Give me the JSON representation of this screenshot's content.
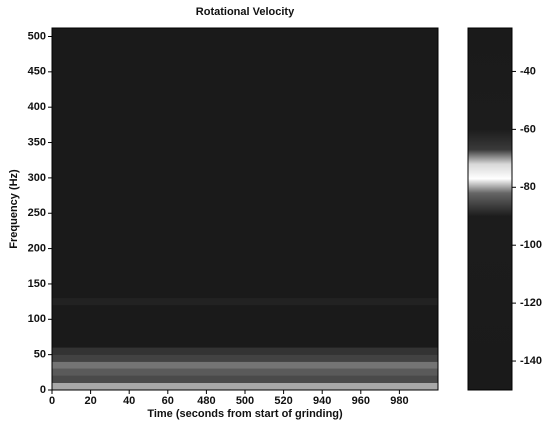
{
  "chart_data": {
    "type": "spectrogram",
    "title": "Rotational Velocity",
    "xlabel": "Time (seconds from start of grinding)",
    "ylabel": "Frequency (Hz)",
    "xtick_labels": [
      "0",
      "20",
      "40",
      "60",
      "480",
      "500",
      "520",
      "940",
      "960",
      "980"
    ],
    "ylim": [
      0,
      512
    ],
    "yticks": [
      0,
      50,
      100,
      150,
      200,
      250,
      300,
      350,
      400,
      450,
      500
    ],
    "clim": [
      -150,
      -25
    ],
    "cticks": [
      -40,
      -60,
      -80,
      -100,
      -120,
      -140
    ],
    "colormap": [
      {
        "value": -150,
        "color": "#1a1a1a"
      },
      {
        "value": -90,
        "color": "#1c1c1c"
      },
      {
        "value": -82,
        "color": "#666666"
      },
      {
        "value": -77,
        "color": "#ffffff"
      },
      {
        "value": -72,
        "color": "#d8d8d8"
      },
      {
        "value": -67,
        "color": "#3a3a3a"
      },
      {
        "value": -60,
        "color": "#1c1c1c"
      },
      {
        "value": -25,
        "color": "#1a1a1a"
      }
    ],
    "bands": [
      {
        "f0": 0,
        "f1": 10,
        "level": -79
      },
      {
        "f0": 10,
        "f1": 20,
        "level": -84
      },
      {
        "f0": 20,
        "f1": 30,
        "level": -82
      },
      {
        "f0": 30,
        "f1": 40,
        "level": -81
      },
      {
        "f0": 40,
        "f1": 50,
        "level": -85
      },
      {
        "f0": 50,
        "f1": 60,
        "level": -87
      },
      {
        "f0": 120,
        "f1": 130,
        "level": -89
      }
    ]
  }
}
